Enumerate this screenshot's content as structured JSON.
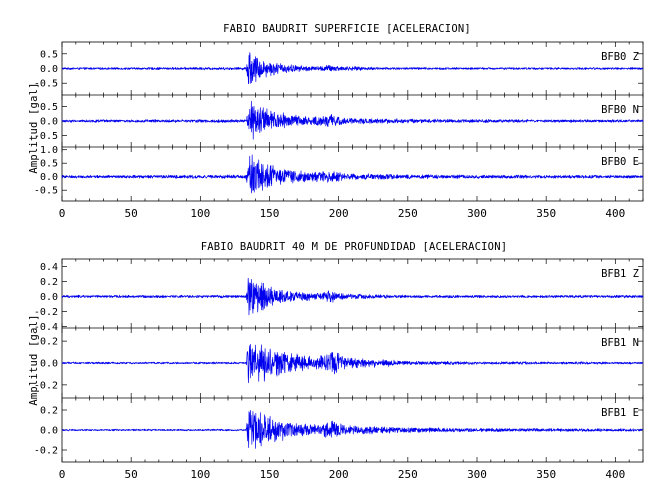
{
  "chart_data": [
    {
      "type": "line",
      "title": "FABIO BAUDRIT SUPERFICIE [ACELERACION]",
      "ylabel": "Amplitud [gal]",
      "xlim": [
        0,
        420
      ],
      "x_ticks": [
        "0",
        "50",
        "100",
        "150",
        "200",
        "250",
        "300",
        "350",
        "400"
      ],
      "series": [
        {
          "name": "BFB0   Z",
          "ylim": [
            -0.9,
            0.9
          ],
          "y_ticks": [
            "0.5",
            "0.0",
            "-0.5"
          ],
          "envelope": [
            [
              0,
              0.04
            ],
            [
              50,
              0.04
            ],
            [
              100,
              0.05
            ],
            [
              133,
              0.05
            ],
            [
              135,
              0.85
            ],
            [
              138,
              0.6
            ],
            [
              145,
              0.35
            ],
            [
              155,
              0.22
            ],
            [
              170,
              0.12
            ],
            [
              185,
              0.08
            ],
            [
              195,
              0.15
            ],
            [
              200,
              0.09
            ],
            [
              230,
              0.05
            ],
            [
              300,
              0.04
            ],
            [
              420,
              0.04
            ]
          ]
        },
        {
          "name": "BFB0   N",
          "ylim": [
            -0.9,
            0.9
          ],
          "y_ticks": [
            "0.5",
            "0.0",
            "-0.5"
          ],
          "envelope": [
            [
              0,
              0.05
            ],
            [
              50,
              0.05
            ],
            [
              100,
              0.06
            ],
            [
              133,
              0.06
            ],
            [
              136,
              0.8
            ],
            [
              140,
              0.6
            ],
            [
              150,
              0.4
            ],
            [
              165,
              0.25
            ],
            [
              180,
              0.15
            ],
            [
              195,
              0.25
            ],
            [
              205,
              0.12
            ],
            [
              250,
              0.08
            ],
            [
              300,
              0.06
            ],
            [
              420,
              0.05
            ]
          ]
        },
        {
          "name": "BFB0   E",
          "ylim": [
            -0.9,
            1.1
          ],
          "y_ticks": [
            "1.0",
            "0.5",
            "0.0",
            "-0.5"
          ],
          "envelope": [
            [
              0,
              0.06
            ],
            [
              50,
              0.06
            ],
            [
              100,
              0.07
            ],
            [
              133,
              0.07
            ],
            [
              136,
              1.05
            ],
            [
              140,
              0.8
            ],
            [
              150,
              0.5
            ],
            [
              165,
              0.3
            ],
            [
              180,
              0.18
            ],
            [
              195,
              0.28
            ],
            [
              205,
              0.14
            ],
            [
              250,
              0.09
            ],
            [
              300,
              0.07
            ],
            [
              420,
              0.06
            ]
          ]
        }
      ]
    },
    {
      "type": "line",
      "title": "FABIO BAUDRIT 40 M DE PROFUNDIDAD [ACELERACION]",
      "ylabel": "Amplitud [gal]",
      "xlim": [
        0,
        420
      ],
      "x_ticks": [
        "0",
        "50",
        "100",
        "150",
        "200",
        "250",
        "300",
        "350",
        "400"
      ],
      "series": [
        {
          "name": "BFB1   Z",
          "ylim": [
            -0.42,
            0.5
          ],
          "y_ticks": [
            "0.4",
            "0.2",
            "0.0",
            "-0.2",
            "-0.4"
          ],
          "envelope": [
            [
              0,
              0.02
            ],
            [
              50,
              0.02
            ],
            [
              100,
              0.02
            ],
            [
              133,
              0.02
            ],
            [
              135,
              0.38
            ],
            [
              140,
              0.28
            ],
            [
              150,
              0.15
            ],
            [
              165,
              0.08
            ],
            [
              185,
              0.05
            ],
            [
              195,
              0.09
            ],
            [
              205,
              0.04
            ],
            [
              250,
              0.02
            ],
            [
              420,
              0.02
            ]
          ]
        },
        {
          "name": "BFB1   N",
          "ylim": [
            -0.32,
            0.32
          ],
          "y_ticks": [
            "0.2",
            "0.0",
            "-0.2"
          ],
          "envelope": [
            [
              0,
              0.01
            ],
            [
              50,
              0.01
            ],
            [
              100,
              0.01
            ],
            [
              133,
              0.01
            ],
            [
              135,
              0.3
            ],
            [
              140,
              0.24
            ],
            [
              150,
              0.16
            ],
            [
              165,
              0.1
            ],
            [
              185,
              0.06
            ],
            [
              195,
              0.13
            ],
            [
              205,
              0.06
            ],
            [
              250,
              0.02
            ],
            [
              300,
              0.015
            ],
            [
              420,
              0.01
            ]
          ]
        },
        {
          "name": "BFB1   E",
          "ylim": [
            -0.32,
            0.32
          ],
          "y_ticks": [
            "0.2",
            "0.0",
            "-0.2"
          ],
          "envelope": [
            [
              0,
              0.01
            ],
            [
              50,
              0.01
            ],
            [
              100,
              0.01
            ],
            [
              133,
              0.01
            ],
            [
              135,
              0.3
            ],
            [
              140,
              0.22
            ],
            [
              150,
              0.14
            ],
            [
              165,
              0.09
            ],
            [
              185,
              0.06
            ],
            [
              195,
              0.11
            ],
            [
              205,
              0.05
            ],
            [
              250,
              0.03
            ],
            [
              300,
              0.02
            ],
            [
              420,
              0.015
            ]
          ]
        }
      ]
    }
  ]
}
